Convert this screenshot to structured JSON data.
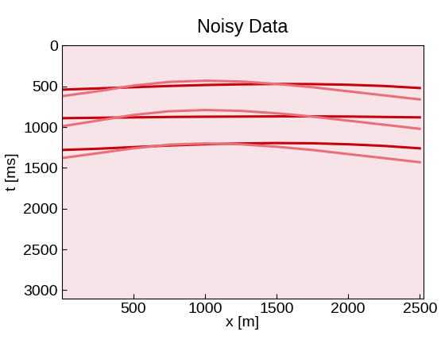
{
  "chart_data": {
    "type": "line",
    "title": "Noisy Data",
    "x_label": "x [m]",
    "y_label": "t [ms]",
    "xlim": [
      0,
      2525
    ],
    "ylim": [
      3100,
      0
    ],
    "xticks": [
      500,
      1000,
      1500,
      2000,
      2500
    ],
    "yticks": [
      0,
      500,
      1000,
      1500,
      2000,
      2500,
      3000
    ],
    "grid": false,
    "x": [
      0,
      250,
      500,
      750,
      1000,
      1250,
      1500,
      1750,
      2000,
      2250,
      2500
    ],
    "series": [
      {
        "color": "#c8000a",
        "line_style": "solid",
        "values": [
          540,
          525,
          510,
          495,
          483,
          475,
          470,
          472,
          480,
          495,
          520
        ]
      },
      {
        "color": "#e8707a",
        "line_style": "solid",
        "values": [
          620,
          560,
          490,
          445,
          430,
          440,
          470,
          510,
          560,
          610,
          660
        ]
      },
      {
        "color": "#c8000a",
        "line_style": "solid",
        "values": [
          890,
          885,
          880,
          875,
          872,
          870,
          868,
          868,
          870,
          875,
          880
        ]
      },
      {
        "color": "#e8707a",
        "line_style": "solid",
        "values": [
          990,
          920,
          850,
          805,
          790,
          800,
          830,
          870,
          920,
          970,
          1020
        ]
      },
      {
        "color": "#c8000a",
        "line_style": "solid",
        "values": [
          1280,
          1265,
          1245,
          1225,
          1210,
          1200,
          1195,
          1198,
          1210,
          1230,
          1260
        ]
      },
      {
        "color": "#e8707a",
        "line_style": "solid",
        "values": [
          1380,
          1320,
          1260,
          1215,
          1200,
          1210,
          1240,
          1280,
          1330,
          1380,
          1430
        ]
      }
    ]
  }
}
